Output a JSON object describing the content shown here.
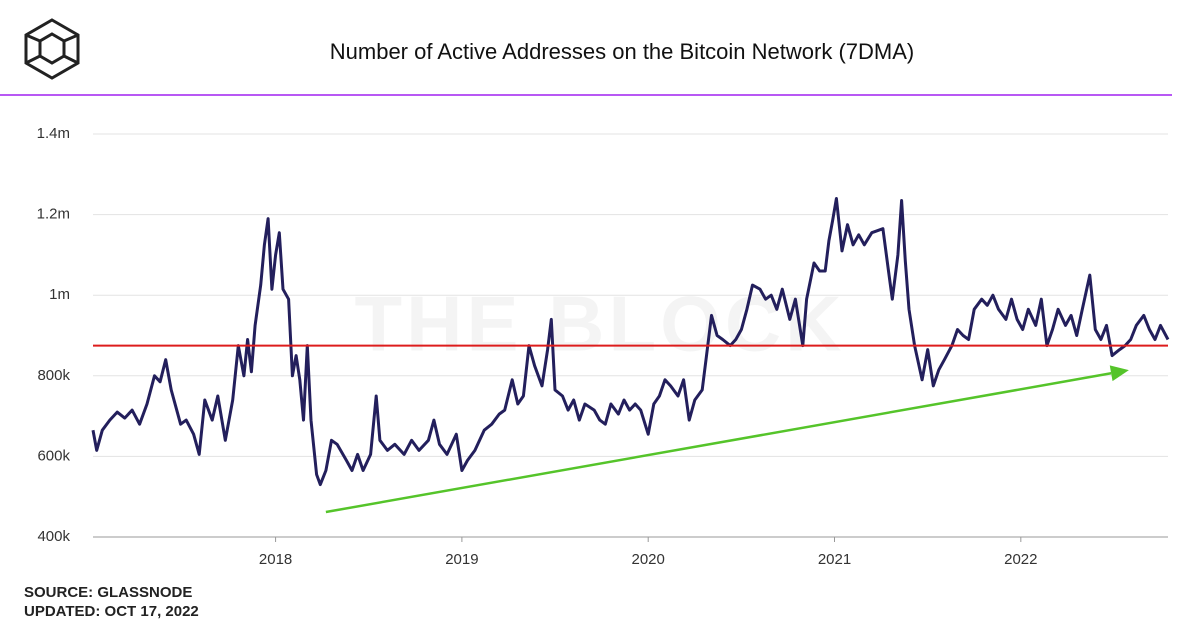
{
  "chart_data": {
    "type": "line",
    "title": "Number of Active Addresses on the Bitcoin Network (7DMA)",
    "watermark": "THE BLOCK",
    "footer": [
      "SOURCE: GLASSNODE",
      "UPDATED: OCT 17, 2022"
    ],
    "color": "#231f5c",
    "xlim": [
      2017.02,
      2022.79
    ],
    "xticks": [
      2018,
      2019,
      2020,
      2021,
      2022
    ],
    "ylim": [
      400000,
      1400000
    ],
    "yticks": [
      {
        "value": 400000,
        "label": "400k"
      },
      {
        "value": 600000,
        "label": "600k"
      },
      {
        "value": 800000,
        "label": "800k"
      },
      {
        "value": 1000000,
        "label": "1m"
      },
      {
        "value": 1200000,
        "label": "1.2m"
      },
      {
        "value": 1400000,
        "label": "1.4m"
      }
    ],
    "grid": true,
    "reference_line": {
      "value": 875000,
      "color": "#dd1c1c"
    },
    "trend_arrow": {
      "from": [
        2018.27,
        462000
      ],
      "to": [
        2022.58,
        814000
      ],
      "color": "#55c42a"
    },
    "x": [
      2017.02,
      2017.04,
      2017.07,
      2017.11,
      2017.15,
      2017.19,
      2017.23,
      2017.27,
      2017.31,
      2017.35,
      2017.38,
      2017.41,
      2017.44,
      2017.49,
      2017.52,
      2017.56,
      2017.59,
      2017.62,
      2017.66,
      2017.69,
      2017.73,
      2017.77,
      2017.8,
      2017.83,
      2017.85,
      2017.87,
      2017.89,
      2017.92,
      2017.94,
      2017.96,
      2017.98,
      2018.0,
      2018.02,
      2018.04,
      2018.07,
      2018.09,
      2018.11,
      2018.13,
      2018.15,
      2018.17,
      2018.19,
      2018.22,
      2018.24,
      2018.27,
      2018.3,
      2018.33,
      2018.38,
      2018.41,
      2018.44,
      2018.47,
      2018.51,
      2018.54,
      2018.56,
      2018.6,
      2018.64,
      2018.69,
      2018.73,
      2018.77,
      2018.82,
      2018.85,
      2018.88,
      2018.92,
      2018.97,
      2019.0,
      2019.03,
      2019.07,
      2019.12,
      2019.16,
      2019.2,
      2019.23,
      2019.27,
      2019.3,
      2019.33,
      2019.36,
      2019.39,
      2019.43,
      2019.46,
      2019.48,
      2019.5,
      2019.54,
      2019.57,
      2019.6,
      2019.63,
      2019.66,
      2019.71,
      2019.74,
      2019.77,
      2019.8,
      2019.84,
      2019.87,
      2019.9,
      2019.93,
      2019.96,
      2020.0,
      2020.03,
      2020.06,
      2020.09,
      2020.12,
      2020.16,
      2020.19,
      2020.22,
      2020.25,
      2020.29,
      2020.31,
      2020.34,
      2020.37,
      2020.4,
      2020.44,
      2020.47,
      2020.5,
      2020.53,
      2020.56,
      2020.6,
      2020.63,
      2020.66,
      2020.69,
      2020.72,
      2020.76,
      2020.79,
      2020.83,
      2020.85,
      2020.89,
      2020.92,
      2020.95,
      2020.97,
      2020.99,
      2021.01,
      2021.04,
      2021.07,
      2021.1,
      2021.13,
      2021.16,
      2021.2,
      2021.23,
      2021.26,
      2021.29,
      2021.31,
      2021.34,
      2021.36,
      2021.38,
      2021.4,
      2021.43,
      2021.47,
      2021.5,
      2021.53,
      2021.56,
      2021.59,
      2021.63,
      2021.66,
      2021.69,
      2021.72,
      2021.75,
      2021.79,
      2021.82,
      2021.85,
      2021.88,
      2021.92,
      2021.95,
      2021.98,
      2022.01,
      2022.04,
      2022.08,
      2022.11,
      2022.14,
      2022.17,
      2022.2,
      2022.24,
      2022.27,
      2022.3,
      2022.33,
      2022.37,
      2022.4,
      2022.43,
      2022.46,
      2022.49,
      2022.53,
      2022.56,
      2022.59,
      2022.62,
      2022.66,
      2022.69,
      2022.72,
      2022.75,
      2022.79
    ],
    "values": [
      665000,
      615000,
      665000,
      690000,
      710000,
      695000,
      715000,
      680000,
      730000,
      800000,
      785000,
      840000,
      765000,
      680000,
      690000,
      655000,
      605000,
      740000,
      690000,
      750000,
      640000,
      740000,
      875000,
      800000,
      890000,
      810000,
      925000,
      1025000,
      1125000,
      1190000,
      1015000,
      1100000,
      1155000,
      1015000,
      990000,
      800000,
      850000,
      790000,
      690000,
      875000,
      690000,
      555000,
      530000,
      565000,
      640000,
      630000,
      590000,
      565000,
      605000,
      565000,
      605000,
      750000,
      640000,
      615000,
      630000,
      605000,
      640000,
      615000,
      640000,
      690000,
      630000,
      605000,
      655000,
      565000,
      590000,
      615000,
      665000,
      680000,
      705000,
      715000,
      790000,
      730000,
      750000,
      875000,
      825000,
      775000,
      865000,
      940000,
      765000,
      750000,
      715000,
      740000,
      690000,
      730000,
      715000,
      690000,
      680000,
      730000,
      705000,
      740000,
      715000,
      730000,
      715000,
      655000,
      730000,
      750000,
      790000,
      775000,
      750000,
      790000,
      690000,
      740000,
      765000,
      840000,
      950000,
      900000,
      890000,
      875000,
      890000,
      915000,
      965000,
      1025000,
      1015000,
      990000,
      1000000,
      965000,
      1015000,
      940000,
      990000,
      875000,
      990000,
      1080000,
      1060000,
      1060000,
      1135000,
      1185000,
      1240000,
      1110000,
      1175000,
      1125000,
      1150000,
      1125000,
      1155000,
      1160000,
      1165000,
      1060000,
      990000,
      1100000,
      1235000,
      1085000,
      965000,
      875000,
      790000,
      865000,
      775000,
      815000,
      840000,
      875000,
      915000,
      900000,
      890000,
      965000,
      990000,
      975000,
      1000000,
      965000,
      940000,
      990000,
      940000,
      915000,
      965000,
      925000,
      990000,
      875000,
      915000,
      965000,
      925000,
      950000,
      900000,
      965000,
      1050000,
      915000,
      890000,
      925000,
      850000,
      865000,
      875000,
      890000,
      925000,
      950000,
      915000,
      890000,
      925000,
      890000
    ]
  }
}
